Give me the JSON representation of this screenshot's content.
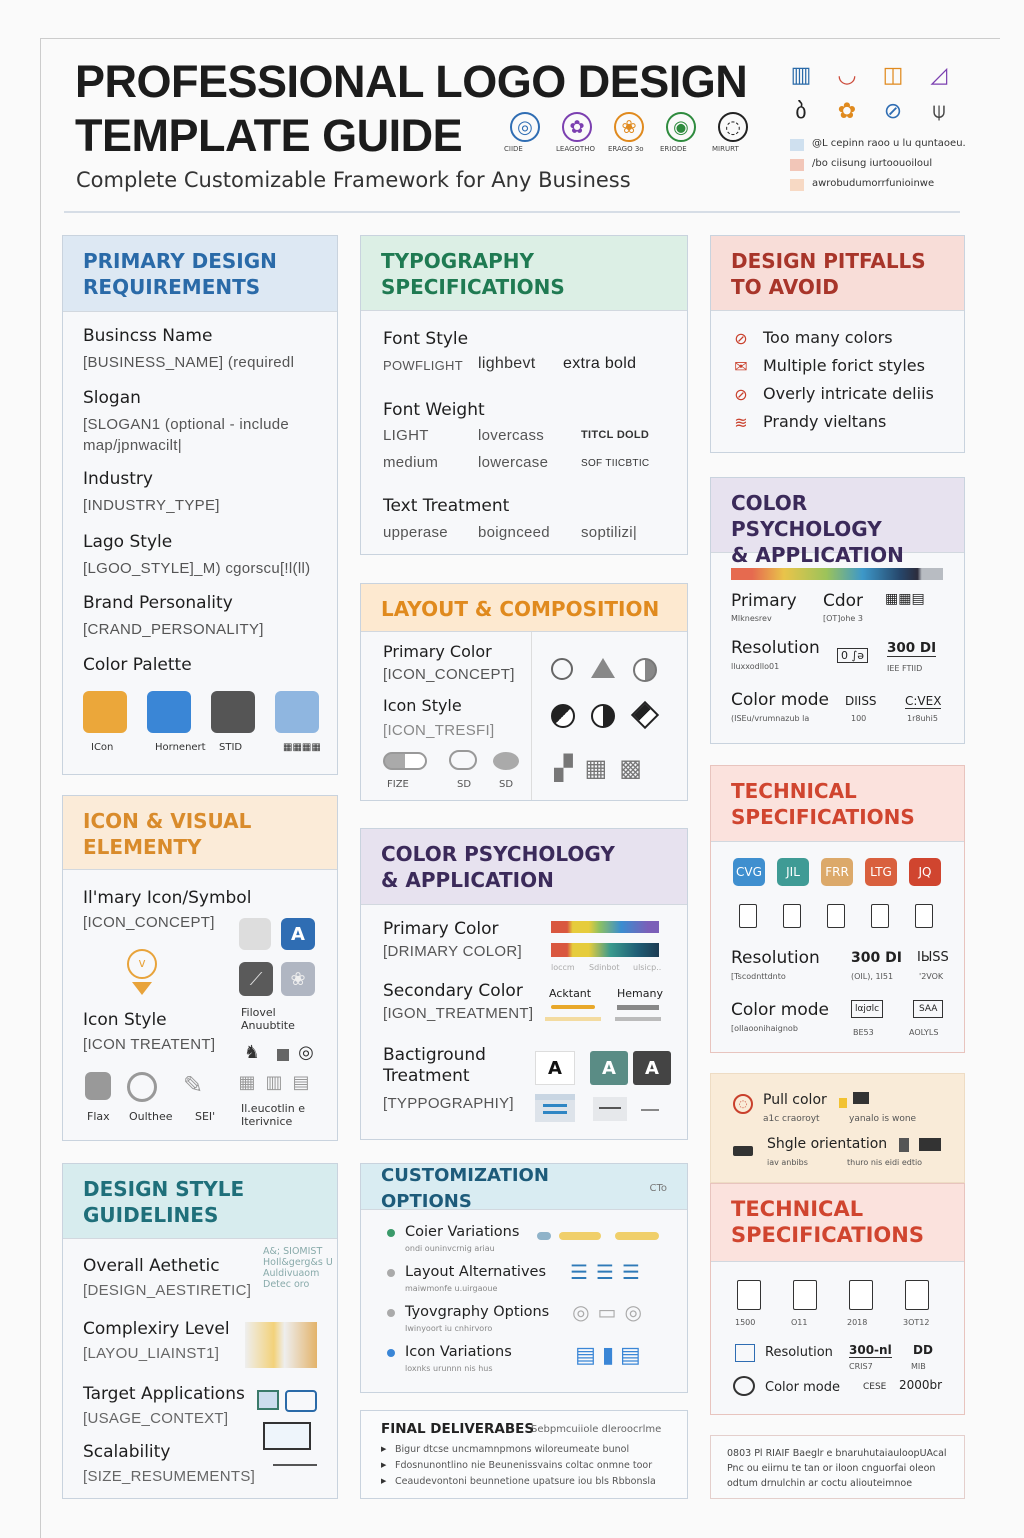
{
  "header": {
    "title_line1": "PROFESSIONAL LOGO DESIGN",
    "title_line2": "TEMPLATE GUIDE",
    "subtitle": "Complete Customizable Framework for Any Business",
    "sample_icons": [
      {
        "label": "CIIDE",
        "color": "#2f6db3"
      },
      {
        "label": "LEAGOTHO",
        "color": "#7b3fb0"
      },
      {
        "label": "ERAGO 3o",
        "color": "#e08a1e"
      },
      {
        "label": "ERIODE",
        "color": "#2e8b3e"
      },
      {
        "label": "MIRURT",
        "color": "#222222"
      }
    ],
    "corner_icon_colors": [
      "#2a6aa8",
      "#cc4a3a",
      "#e08a1e",
      "#7b3fb0",
      "#222222",
      "#e08a1e",
      "#2f6db3",
      "#444444"
    ],
    "legend": [
      {
        "text": "@L cepinn raoo u lu quntaoeu.",
        "color": "#cfe0ef"
      },
      {
        "text": "/bo ciisung iurtoouoiloul",
        "color": "#f2c6b8"
      },
      {
        "text": "awrobudumorrfunioinwe",
        "color": "#f7d9c4"
      }
    ]
  },
  "primary": {
    "heading": "PRIMARY DESIGN\nREQUIREMENTS",
    "color": "#2a6aa8",
    "bg": "#dde8f3",
    "items": [
      {
        "label": "Busincss Name",
        "value": "[BUSINESS_NAME] (requiredl"
      },
      {
        "label": "Slogan",
        "value": "[SLOGAN1 (optional - include\nmap/jpnwacilt|"
      },
      {
        "label": "Industry",
        "value": "[INDUSTRY_TYPE]"
      },
      {
        "label": "Lago Style",
        "value": "[LGOO_STYLE]_M) cgorscu[!l(ll)"
      },
      {
        "label": "Brand Personality",
        "value": "[CRAND_PERSONALITY]"
      },
      {
        "label": "Color Palette",
        "value": ""
      }
    ],
    "palette": [
      {
        "label": "ICon",
        "color": "#eba73a"
      },
      {
        "label": "Hornenert",
        "color": "#3a86d6"
      },
      {
        "label": "STID",
        "color": "#555555"
      },
      {
        "label": "▦▦▦▦",
        "color": "#8fb6e0"
      }
    ]
  },
  "icon_visual": {
    "heading": "ICON & VISUAL\nELEMENTY",
    "color": "#d98b2b",
    "bg": "#fbebd8",
    "primary_label": "Il'mary Icon/Symbol",
    "primary_value": "[ICON_CONCEPT]",
    "style_label": "Icon Style",
    "style_value": "[ICON TREATENT]",
    "styles": [
      "Flax",
      "Oulthee",
      "SEI'"
    ],
    "side_label": "Filovel\nAnuubtite",
    "side_label2": "Il.eucotlin e\nIterivnice"
  },
  "design_style": {
    "heading": "DESIGN STYLE\nGUIDELINES",
    "color": "#1f6f7a",
    "bg": "#d7ecee",
    "items": [
      {
        "label": "Overall Aethetic",
        "value": "[DESIGN_AESTIRETIC]",
        "note": "A&; SIOMIST\nHoIl&gerg&s U\nAuldivuaom\nDetec oro"
      },
      {
        "label": "Complexiry Level",
        "value": "[LAYOU_LIAINST1]"
      },
      {
        "label": "Target Applications",
        "value": "[USAGE_CONTEXT]"
      },
      {
        "label": "Scalability",
        "value": "[SIZE_RESUMEMENTS]"
      }
    ]
  },
  "typography": {
    "heading": "TYPOGRAPHY\nSPECIFICATIONS",
    "color": "#1f7a52",
    "bg": "#dcefe5",
    "font_style": {
      "label": "Font Style",
      "values": [
        "POWFLIGHT",
        "lighbevt",
        "extra bold"
      ]
    },
    "font_weight": {
      "label": "Font Weight",
      "rows": [
        [
          "LIGHT",
          "lovercass",
          "TITCL DOLD"
        ],
        [
          "medium",
          "lowercase",
          "SOF TIICBTIC"
        ]
      ]
    },
    "text_treatment": {
      "label": "Text Treatment",
      "values": [
        "upperase",
        "boignceed",
        "soptilizi|"
      ]
    }
  },
  "layout": {
    "heading": "LAYOUT & COMPOSITION",
    "color": "#e08a1e",
    "bg": "#fde9d0",
    "items": [
      {
        "label": "Primary Color",
        "value": "[ICON_CONCEPT]"
      },
      {
        "label": "Icon Style",
        "value": "[ICON_TRESFI]"
      }
    ],
    "shape_labels": [
      "FIZE",
      "SD",
      "SD"
    ]
  },
  "color_psych_center": {
    "heading": "COLOR PSYCHOLOGY\n& APPLICATION",
    "color": "#3b2a5a",
    "bg": "#e7e2ef",
    "items": [
      {
        "label": "Primary Color",
        "value": "[DRIMARY COLOR]"
      },
      {
        "label": "Secondary Color",
        "value": "[IGON_TREATMENT]"
      },
      {
        "label": "Bactiground\nTreatment",
        "value": "[TYPPOGRAPHIY]"
      }
    ],
    "bar_labels": [
      "loccm",
      "Sdinbot",
      "ulsicp.."
    ],
    "accent_labels": [
      "Acktant",
      "Hemany"
    ],
    "letter": "A"
  },
  "customization": {
    "heading": "CUSTOMIZATION OPTIONS",
    "tag": "CTo",
    "color": "#1d5b7a",
    "bg": "#d9ecf2",
    "items": [
      {
        "label": "Coier Variations",
        "note": "ondi ouninvcrnig ariau",
        "dot": "#3a9a6a"
      },
      {
        "label": "Layout Alternatives",
        "note": "maiwmonfe u.uirgaoue",
        "dot": "#aaaaaa"
      },
      {
        "label": "Tyovgraphy Options",
        "note": "Iwinyoort iu cnhirvoro",
        "dot": "#aaaaaa"
      },
      {
        "label": "Icon Variations",
        "note": "loxnks urunnn nis hus",
        "dot": "#3a86d6"
      }
    ]
  },
  "deliverables": {
    "heading": "FINAL DELIVERABES",
    "sub": "Sebpmcuiiole dleroocrlme",
    "items": [
      "Bigur dtcse uncmamnpmons wiloreumeate bunol",
      "Fdosnunontlino nie Beunenissvains coltac onmne toor",
      "Ceaudevontoni beunnetione upatsure iou bls Rbbonsla"
    ]
  },
  "pitfalls": {
    "heading": "DESIGN PITFALLS\nTO AVOID",
    "color": "#a8352a",
    "bg": "#f8ddd8",
    "items": [
      "Too many colors",
      "Multiple forict styles",
      "Overly intricate deliis",
      "Prandy vieltans"
    ]
  },
  "color_psych_right": {
    "heading": "COLOR PSYCHOLOGY\n& APPLICATION",
    "color": "#3b2a5a",
    "bg": "#e7e2ef",
    "rows": [
      {
        "label": "Primary",
        "note": "Mlknesrev",
        "mid": "Cdor",
        "mid_note": "[OT]ohe 3",
        "right": "▦▦▤"
      },
      {
        "label": "Resolution",
        "note": "lluxxodllo01",
        "mid": "0 ∫ǝ",
        "right": "300 DI",
        "right_note": "IEE FTIID"
      },
      {
        "label": "Color mode",
        "note": "(ISEu/vrumnazub la",
        "mid": "DIISS",
        "mid_note": "100",
        "right": "C:VEX",
        "right_note": "1r8uhi5"
      }
    ]
  },
  "tech1": {
    "heading": "TECHNICAL\nSPECIFICATIONS",
    "color": "#d0452f",
    "bg": "#fbe2dd",
    "formats": [
      {
        "label": "CVG",
        "color": "#3f8fcf"
      },
      {
        "label": "JIL",
        "color": "#3f9b95"
      },
      {
        "label": "FRR",
        "color": "#dca96a"
      },
      {
        "label": "LTG",
        "color": "#d9603e"
      },
      {
        "label": "JQ",
        "color": "#d0452f"
      }
    ],
    "resolution": {
      "label": "Resolution",
      "note": "[Tscodnttdnto",
      "value": "300 DI",
      "value_note": "(OIL), 1I51",
      "extra": "IЫSS",
      "extra_note": "'2VOK"
    },
    "color_mode": {
      "label": "Color mode",
      "note": "[oIlaoonihaignob",
      "v1": "lαjσlc",
      "v1_note": "BE53",
      "v2": "SAA",
      "v2_note": "AOLYLS"
    }
  },
  "print": {
    "bg": "#f9ebd8",
    "items": [
      {
        "label": "Pull color",
        "note": "a1c craoroyt",
        "right_note": "yanalo is wone"
      },
      {
        "label": "Shgle orientation",
        "note": "iav anbibs",
        "right_note": "thuro nis eidi edtio"
      }
    ]
  },
  "tech2": {
    "heading": "TECHNICAL\nSPECIFICATIONS",
    "color": "#d0452f",
    "bg": "#fbe2dd",
    "doc_labels": [
      "1500",
      "O11",
      "2018",
      "3OT12"
    ],
    "resolution": {
      "label": "Resolution",
      "value": "300-nl",
      "note": "CRIS7",
      "value2": "DD",
      "note2": "MIB"
    },
    "color_mode": {
      "label": "Color mode",
      "value": "CESE",
      "value2": "2000br"
    }
  },
  "footer_note": "0803 Pl RIAIF Baeglr e bnaruhutaiauloopUAcal\nPnc ou eiirnu te tan or iloon cnguorfai oleon\nodtum drnulchin ar coctu aliouteimnoe"
}
